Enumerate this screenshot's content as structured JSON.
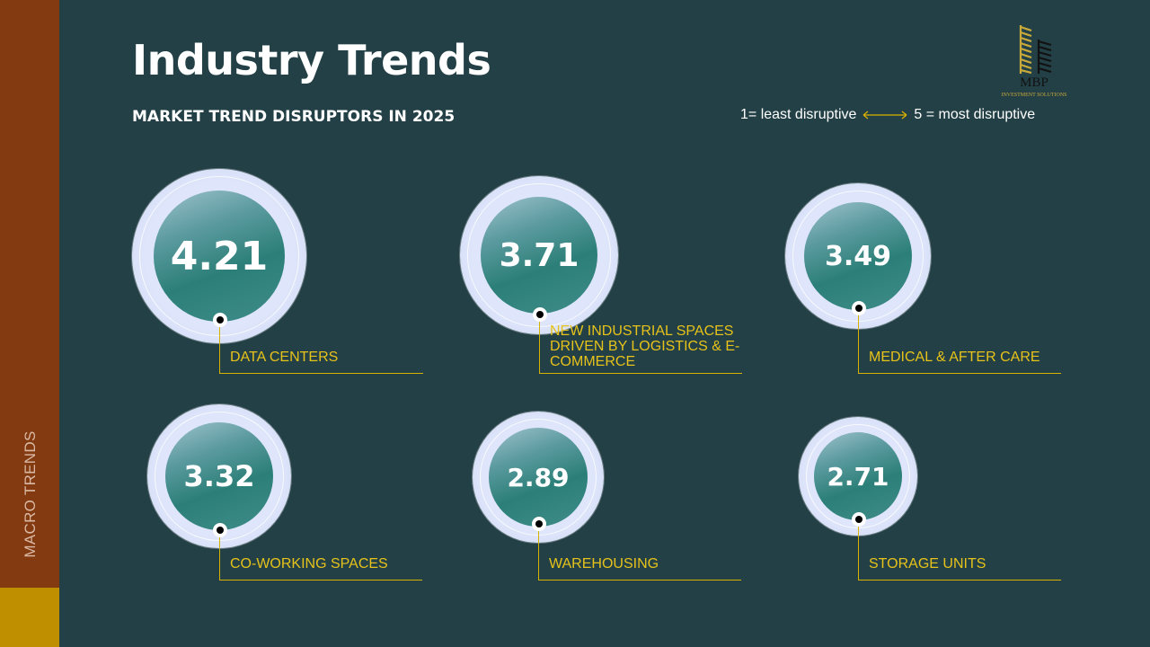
{
  "sidebar": {
    "label": "MACRO TRENDS",
    "color_top": "#843A10",
    "color_bottom": "#BF8F00"
  },
  "header": {
    "title": "Industry Trends",
    "subtitle": "MARKET TREND DISRUPTORS IN 2025"
  },
  "legend": {
    "low": "1= least disruptive",
    "high": "5 = most disruptive",
    "arrow_icon": "double-arrow-icon"
  },
  "logo": {
    "text": "MBP",
    "tagline": "INVESTMENT SOLUTIONS"
  },
  "scale": {
    "min": 1,
    "max": 5
  },
  "trends": [
    {
      "score": "4.21",
      "label": "DATA CENTERS"
    },
    {
      "score": "3.71",
      "label": "NEW INDUSTRIAL SPACES DRIVEN BY LOGISTICS & E-COMMERCE"
    },
    {
      "score": "3.49",
      "label": "MEDICAL & AFTER CARE"
    },
    {
      "score": "3.32",
      "label": "CO-WORKING SPACES"
    },
    {
      "score": "2.89",
      "label": "WAREHOUSING"
    },
    {
      "score": "2.71",
      "label": "STORAGE UNITS"
    }
  ],
  "colors": {
    "background": "#234046",
    "accent": "#D8B200"
  }
}
